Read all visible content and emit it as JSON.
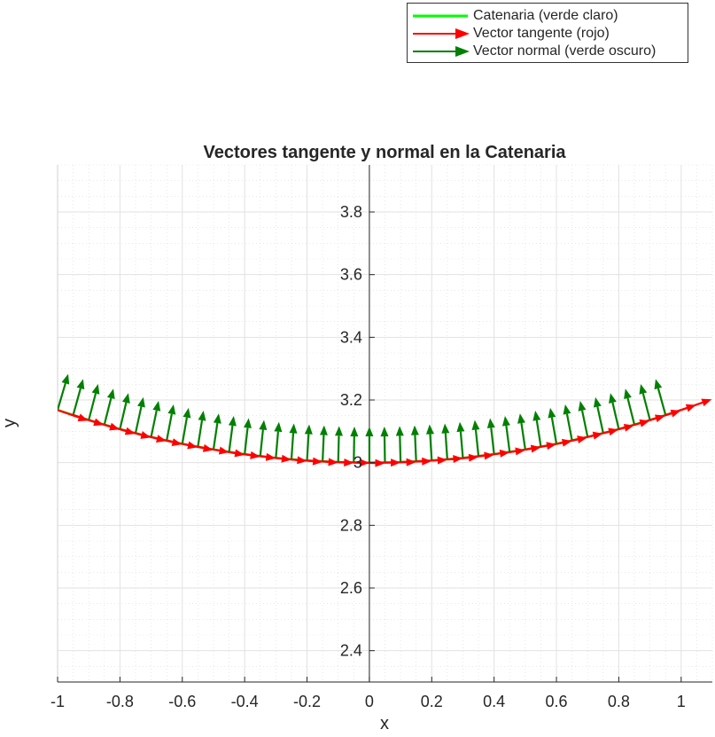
{
  "chart_data": {
    "type": "line",
    "title": "Vectores tangente y normal en la Catenaria",
    "xlabel": "x",
    "ylabel": "y",
    "xlim": [
      -1,
      1.1
    ],
    "ylim": [
      2.3,
      3.95
    ],
    "xticks": [
      -1,
      -0.8,
      -0.6,
      -0.4,
      -0.2,
      0,
      0.2,
      0.4,
      0.6,
      0.8,
      1
    ],
    "xtick_labels": [
      "-1",
      "-0.8",
      "-0.6",
      "-0.4",
      "-0.2",
      "0",
      "0.2",
      "0.4",
      "0.6",
      "0.8",
      "1"
    ],
    "yticks": [
      2.4,
      2.6,
      2.8,
      3.0,
      3.2,
      3.4,
      3.6,
      3.8
    ],
    "ytick_labels": [
      "2.4",
      "2.6",
      "2.8",
      "3",
      "3.2",
      "3.4",
      "3.6",
      "3.8"
    ],
    "grid": true,
    "minor_grid": true,
    "axes_through_origin": true,
    "legend_position": "top-right (outside the axes)",
    "colors": {
      "catenary": "#00ff00",
      "tangent": "#ff0000",
      "normal": "#008000"
    },
    "series": [
      {
        "name": "Catenaria (verde claro)",
        "kind": "curve",
        "x": [
          -1.0,
          -0.9,
          -0.8,
          -0.7,
          -0.6,
          -0.5,
          -0.4,
          -0.3,
          -0.2,
          -0.1,
          0.0,
          0.1,
          0.2,
          0.3,
          0.4,
          0.5,
          0.6,
          0.7,
          0.8,
          0.9,
          1.0
        ],
        "y": [
          3.168,
          3.136,
          3.107,
          3.082,
          3.06,
          3.042,
          3.027,
          3.015,
          3.007,
          3.002,
          3.0,
          3.002,
          3.007,
          3.015,
          3.027,
          3.042,
          3.06,
          3.082,
          3.107,
          3.136,
          3.168
        ]
      },
      {
        "name": "Vector tangente (rojo)",
        "kind": "quiver",
        "x": [
          -1.0,
          -0.95,
          -0.9,
          -0.85,
          -0.8,
          -0.75,
          -0.7,
          -0.65,
          -0.6,
          -0.55,
          -0.5,
          -0.45,
          -0.4,
          -0.35,
          -0.3,
          -0.25,
          -0.2,
          -0.15,
          -0.1,
          -0.05,
          0.0,
          0.05,
          0.1,
          0.15,
          0.2,
          0.25,
          0.3,
          0.35,
          0.4,
          0.45,
          0.5,
          0.55,
          0.6,
          0.65,
          0.7,
          0.75,
          0.8,
          0.85,
          0.9,
          0.95,
          1.0
        ],
        "y": [
          3.168,
          3.152,
          3.136,
          3.121,
          3.107,
          3.094,
          3.082,
          3.071,
          3.06,
          3.051,
          3.042,
          3.034,
          3.027,
          3.021,
          3.015,
          3.01,
          3.007,
          3.004,
          3.002,
          3.0,
          3.0,
          3.0,
          3.002,
          3.004,
          3.007,
          3.01,
          3.015,
          3.021,
          3.027,
          3.034,
          3.042,
          3.051,
          3.06,
          3.071,
          3.082,
          3.094,
          3.107,
          3.121,
          3.136,
          3.152,
          3.168
        ],
        "u": [
          0.098,
          0.098,
          0.099,
          0.099,
          0.099,
          0.099,
          0.099,
          0.099,
          0.099,
          0.1,
          0.1,
          0.1,
          0.1,
          0.1,
          0.1,
          0.1,
          0.1,
          0.1,
          0.1,
          0.1,
          0.1,
          0.1,
          0.1,
          0.1,
          0.1,
          0.1,
          0.1,
          0.1,
          0.1,
          0.1,
          0.1,
          0.1,
          0.099,
          0.099,
          0.099,
          0.099,
          0.099,
          0.099,
          0.099,
          0.098,
          0.098
        ],
        "v": [
          -0.034,
          -0.032,
          -0.03,
          -0.029,
          -0.027,
          -0.025,
          -0.024,
          -0.022,
          -0.02,
          -0.018,
          -0.017,
          -0.015,
          -0.013,
          -0.012,
          -0.01,
          -0.008,
          -0.007,
          -0.005,
          -0.003,
          -0.002,
          0.0,
          0.002,
          0.003,
          0.005,
          0.007,
          0.008,
          0.01,
          0.012,
          0.013,
          0.015,
          0.017,
          0.018,
          0.02,
          0.022,
          0.024,
          0.025,
          0.027,
          0.029,
          0.03,
          0.032,
          0.034
        ]
      },
      {
        "name": "Vector normal (verde oscuro)",
        "kind": "quiver",
        "x": [
          -1.0,
          -0.95,
          -0.9,
          -0.85,
          -0.8,
          -0.75,
          -0.7,
          -0.65,
          -0.6,
          -0.55,
          -0.5,
          -0.45,
          -0.4,
          -0.35,
          -0.3,
          -0.25,
          -0.2,
          -0.15,
          -0.1,
          -0.05,
          0.0,
          0.05,
          0.1,
          0.15,
          0.2,
          0.25,
          0.3,
          0.35,
          0.4,
          0.45,
          0.5,
          0.55,
          0.6,
          0.65,
          0.7,
          0.75,
          0.8,
          0.85,
          0.9,
          0.95
        ],
        "y": [
          3.168,
          3.152,
          3.136,
          3.121,
          3.107,
          3.094,
          3.082,
          3.071,
          3.06,
          3.051,
          3.042,
          3.034,
          3.027,
          3.021,
          3.015,
          3.01,
          3.007,
          3.004,
          3.002,
          3.0,
          3.0,
          3.0,
          3.002,
          3.004,
          3.007,
          3.01,
          3.015,
          3.021,
          3.027,
          3.034,
          3.042,
          3.051,
          3.06,
          3.071,
          3.082,
          3.094,
          3.107,
          3.121,
          3.136,
          3.152
        ],
        "u": [
          0.034,
          0.032,
          0.03,
          0.029,
          0.027,
          0.025,
          0.024,
          0.022,
          0.02,
          0.018,
          0.017,
          0.015,
          0.013,
          0.012,
          0.01,
          0.008,
          0.007,
          0.005,
          0.003,
          0.002,
          0.0,
          -0.002,
          -0.003,
          -0.005,
          -0.007,
          -0.008,
          -0.01,
          -0.012,
          -0.013,
          -0.015,
          -0.017,
          -0.018,
          -0.02,
          -0.022,
          -0.024,
          -0.025,
          -0.027,
          -0.029,
          -0.03,
          -0.032
        ],
        "v": [
          0.115,
          0.115,
          0.115,
          0.115,
          0.115,
          0.115,
          0.115,
          0.115,
          0.115,
          0.115,
          0.115,
          0.115,
          0.115,
          0.115,
          0.115,
          0.115,
          0.115,
          0.115,
          0.115,
          0.115,
          0.115,
          0.115,
          0.115,
          0.115,
          0.115,
          0.115,
          0.115,
          0.115,
          0.115,
          0.115,
          0.115,
          0.115,
          0.115,
          0.115,
          0.115,
          0.115,
          0.115,
          0.115,
          0.115,
          0.115
        ]
      }
    ]
  },
  "legend": {
    "items": [
      {
        "label": "Catenaria (verde claro)",
        "color": "#00ff00",
        "marker": "line"
      },
      {
        "label": "Vector tangente (rojo)",
        "color": "#ff0000",
        "marker": "arrow"
      },
      {
        "label": "Vector normal (verde oscuro)",
        "color": "#008000",
        "marker": "arrow"
      }
    ]
  }
}
